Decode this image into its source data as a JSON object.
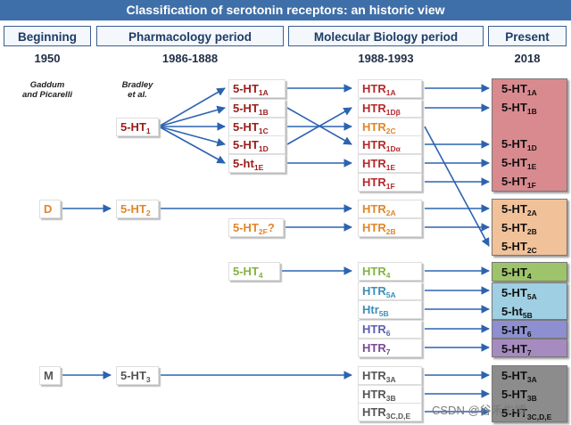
{
  "title": "Classification of serotonin receptors: an historic view",
  "headers": {
    "beginning": "Beginning",
    "pharmacology": "Pharmacology period",
    "molecular": "Molecular Biology period",
    "present": "Present"
  },
  "years": {
    "beginning": "1950",
    "pharmacology": "1986-1888",
    "molecular": "1988-1993",
    "present": "2018"
  },
  "notes": {
    "gaddum_line1": "Gaddum",
    "gaddum_line2": "and Picarelli",
    "bradley_line1": "Bradley",
    "bradley_line2": "et al."
  },
  "beginning": {
    "d": "D",
    "m": "M"
  },
  "pharmacology": {
    "ht1": {
      "base": "5-HT",
      "sub": "1"
    },
    "ht2": {
      "base": "5-HT",
      "sub": "2"
    },
    "ht3": {
      "base": "5-HT",
      "sub": "3"
    }
  },
  "subtypes": {
    "ht1a": {
      "base": "5-HT",
      "sub": "1A"
    },
    "ht1b": {
      "base": "5-HT",
      "sub": "1B"
    },
    "ht1c": {
      "base": "5-HT",
      "sub": "1C"
    },
    "ht1d": {
      "base": "5-HT",
      "sub": "1D"
    },
    "ht1e": {
      "base": "5-ht",
      "sub": "1E"
    },
    "ht2f": {
      "base": "5-HT",
      "sub": "2F",
      "suffix": "?"
    },
    "ht4": {
      "base": "5-HT",
      "sub": "4"
    }
  },
  "molecular": {
    "htr1a": {
      "base": "HTR",
      "sub": "1A"
    },
    "htr1d_beta": {
      "base": "HTR",
      "sub": "1Dβ"
    },
    "htr2c": {
      "base": "HTR",
      "sub": "2C"
    },
    "htr1d_alpha": {
      "base": "HTR",
      "sub": "1Dα"
    },
    "htr1e": {
      "base": "HTR",
      "sub": "1E"
    },
    "htr1f": {
      "base": "HTR",
      "sub": "1F"
    },
    "htr2a": {
      "base": "HTR",
      "sub": "2A"
    },
    "htr2b": {
      "base": "HTR",
      "sub": "2B"
    },
    "htr4": {
      "base": "HTR",
      "sub": "4"
    },
    "htr5a": {
      "base": "HTR",
      "sub": "5A"
    },
    "htr5b": {
      "base": "Htr",
      "sub": "5B"
    },
    "htr6": {
      "base": "HTR",
      "sub": "6"
    },
    "htr7": {
      "base": "HTR",
      "sub": "7"
    },
    "htr3a": {
      "base": "HTR",
      "sub": "3A"
    },
    "htr3b": {
      "base": "HTR",
      "sub": "3B"
    },
    "htr3cde": {
      "base": "HTR",
      "sub": "3C,D,E"
    }
  },
  "present": {
    "p1a": {
      "base": "5-HT",
      "sub": "1A"
    },
    "p1b": {
      "base": "5-HT",
      "sub": "1B"
    },
    "p1d": {
      "base": "5-HT",
      "sub": "1D"
    },
    "p1e": {
      "base": "5-HT",
      "sub": "1E"
    },
    "p1f": {
      "base": "5-HT",
      "sub": "1F"
    },
    "p2a": {
      "base": "5-HT",
      "sub": "2A"
    },
    "p2b": {
      "base": "5-HT",
      "sub": "2B"
    },
    "p2c": {
      "base": "5-HT",
      "sub": "2C"
    },
    "p4": {
      "base": "5-HT",
      "sub": "4"
    },
    "p5a": {
      "base": "5-HT",
      "sub": "5A"
    },
    "p5b": {
      "base": "5-ht",
      "sub": "5B"
    },
    "p6": {
      "base": "5-HT",
      "sub": "6"
    },
    "p7": {
      "base": "5-HT",
      "sub": "7"
    },
    "p3a": {
      "base": "5-HT",
      "sub": "3A"
    },
    "p3b": {
      "base": "5-HT",
      "sub": "3B"
    },
    "p3cde": {
      "base": "5-HT",
      "sub": "3C,D,E"
    }
  },
  "watermark": "CSDN @谷禾牛博",
  "colors": {
    "title_bg": "#3f6fa8",
    "arrow": "#2c63b0",
    "panel_5ht1": "#d98a8f",
    "panel_5ht2": "#f1c29a",
    "panel_5ht4": "#9dc46a",
    "panel_5ht5": "#9fcfe3",
    "panel_5ht6": "#8d8fd0",
    "panel_5ht7": "#a58bbf",
    "panel_5ht3": "#8c8c8c"
  }
}
